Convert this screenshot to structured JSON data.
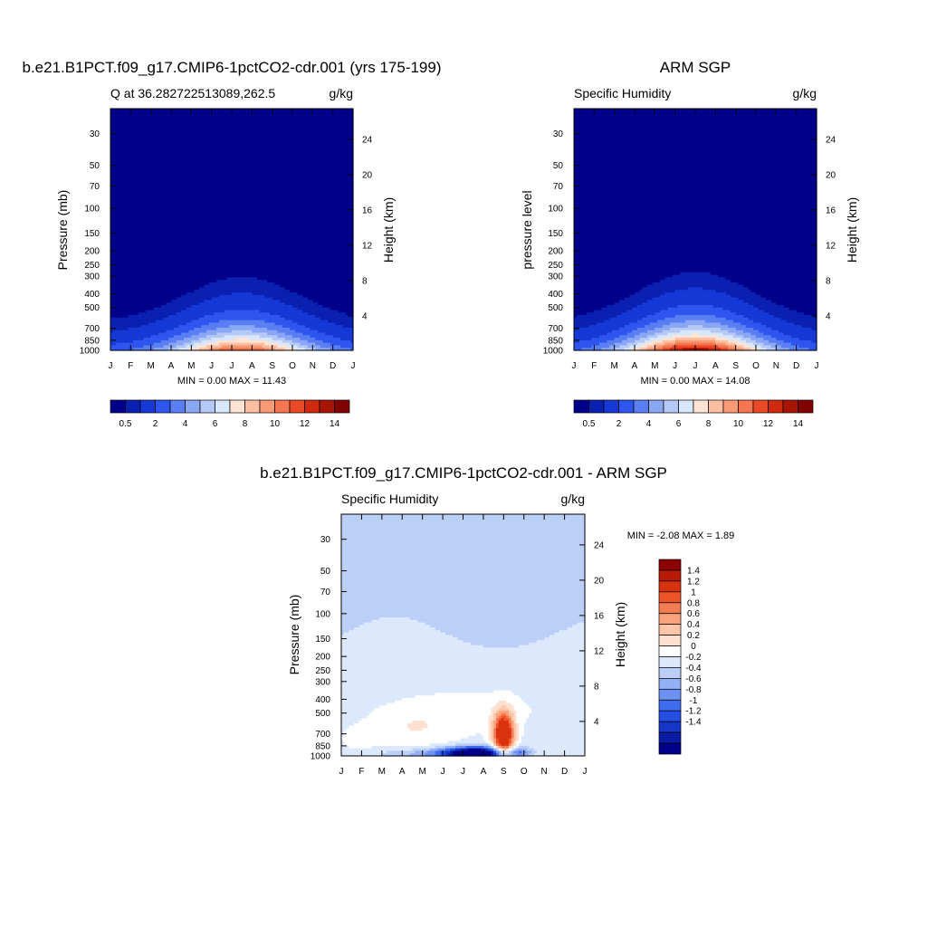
{
  "colors": {
    "q_levels": [
      "#00008a",
      "#0a20b0",
      "#1538d6",
      "#2e55ee",
      "#5a7ff2",
      "#8aa7f4",
      "#b5c9f6",
      "#d7e6fb",
      "#ffe3d3",
      "#fcbfa2",
      "#f99a76",
      "#f57650",
      "#eb4a26",
      "#cf2a10",
      "#a91505",
      "#820000"
    ],
    "diff_levels": [
      "#00008a",
      "#0a1ca6",
      "#1536c8",
      "#254fe3",
      "#3f6bef",
      "#6d91f2",
      "#94b0f4",
      "#bcd0f7",
      "#dce9fc",
      "#ffffff",
      "#fde0cf",
      "#fcc6a8",
      "#faa37c",
      "#f57b52",
      "#ef5428",
      "#d9320e",
      "#b81a05",
      "#8c0000"
    ]
  },
  "plots": [
    {
      "title": "b.e21.B1PCT.f09_g17.CMIP6-1pctCO2-cdr.001 (yrs 175-199)",
      "left_label": "Q at 36.282722513089,262.5",
      "right_label": "g/kg",
      "ylabel": "Pressure (mb)",
      "y2label": "Height (km)",
      "stats": "MIN =   0.00 MAX =  11.43"
    },
    {
      "title": "ARM SGP",
      "left_label": "Specific Humidity",
      "right_label": "g/kg",
      "ylabel": "pressure level",
      "y2label": "Height (km)",
      "stats": "MIN =   0.00 MAX =  14.08"
    },
    {
      "title": "b.e21.B1PCT.f09_g17.CMIP6-1pctCO2-cdr.001 - ARM SGP",
      "left_label": "Specific Humidity",
      "right_label": "g/kg",
      "ylabel": "Pressure (mb)",
      "y2label": "Height (km)",
      "stats": "MIN =  -2.08 MAX =   1.89"
    }
  ],
  "chart_data": [
    {
      "type": "heatmap",
      "title": "b.e21.B1PCT.f09_g17.CMIP6-1pctCO2-cdr.001 (yrs 175-199)",
      "variable": "Q",
      "units": "g/kg",
      "x_ticks": [
        "J",
        "F",
        "M",
        "A",
        "M",
        "J",
        "J",
        "A",
        "S",
        "O",
        "N",
        "D",
        "J"
      ],
      "y_ticks": [
        30,
        50,
        70,
        100,
        150,
        200,
        250,
        300,
        400,
        500,
        700,
        850,
        1000
      ],
      "y2_ticks": [
        4,
        8,
        12,
        16,
        20,
        24
      ],
      "y_range": [
        1000,
        20
      ],
      "levels": [
        0.5,
        1,
        2,
        3,
        4,
        5,
        6,
        7,
        8,
        9,
        10,
        11,
        12,
        13,
        14
      ],
      "colorbar_labels": [
        "0.5",
        "2",
        "4",
        "6",
        "8",
        "10",
        "12",
        "14"
      ],
      "peak_month_index": 6.5,
      "min": 0.0,
      "max": 11.43
    },
    {
      "type": "heatmap",
      "title": "ARM SGP",
      "variable": "Specific Humidity",
      "units": "g/kg",
      "x_ticks": [
        "J",
        "F",
        "M",
        "A",
        "M",
        "J",
        "J",
        "A",
        "S",
        "O",
        "N",
        "D",
        "J"
      ],
      "y_ticks": [
        30,
        50,
        70,
        100,
        150,
        200,
        250,
        300,
        400,
        500,
        700,
        850,
        1000
      ],
      "y2_ticks": [
        4,
        8,
        12,
        16,
        20,
        24
      ],
      "y_range": [
        1000,
        20
      ],
      "levels": [
        0.5,
        1,
        2,
        3,
        4,
        5,
        6,
        7,
        8,
        9,
        10,
        11,
        12,
        13,
        14
      ],
      "colorbar_labels": [
        "0.5",
        "2",
        "4",
        "6",
        "8",
        "10",
        "12",
        "14"
      ],
      "peak_month_index": 6.0,
      "min": 0.0,
      "max": 14.08
    },
    {
      "type": "heatmap",
      "title": "b.e21.B1PCT.f09_g17.CMIP6-1pctCO2-cdr.001 - ARM SGP",
      "variable": "Specific Humidity difference",
      "units": "g/kg",
      "x_ticks": [
        "J",
        "F",
        "M",
        "A",
        "M",
        "J",
        "J",
        "A",
        "S",
        "O",
        "N",
        "D",
        "J"
      ],
      "y_ticks": [
        30,
        50,
        70,
        100,
        150,
        200,
        250,
        300,
        400,
        500,
        700,
        850,
        1000
      ],
      "y2_ticks": [
        4,
        8,
        12,
        16,
        20,
        24
      ],
      "y_range": [
        1000,
        20
      ],
      "levels": [
        -1.4,
        -1.2,
        -1,
        -0.8,
        -0.6,
        -0.4,
        -0.2,
        0,
        0.2,
        0.4,
        0.6,
        0.8,
        1,
        1.2,
        1.4
      ],
      "colorbar_labels": [
        "1.4",
        "1.2",
        "1",
        "0.8",
        "0.6",
        "0.4",
        "0.2",
        "0",
        "-0.2",
        "-0.4",
        "-0.6",
        "-0.8",
        "-1",
        "-1.2",
        "-1.4"
      ],
      "positive_peak": {
        "month_index": 8.0,
        "pressure": 700,
        "value": 1.89
      },
      "negative_core": {
        "month_index": 6.5,
        "pressure": 950,
        "value": -2.08
      },
      "min": -2.08,
      "max": 1.89
    }
  ]
}
